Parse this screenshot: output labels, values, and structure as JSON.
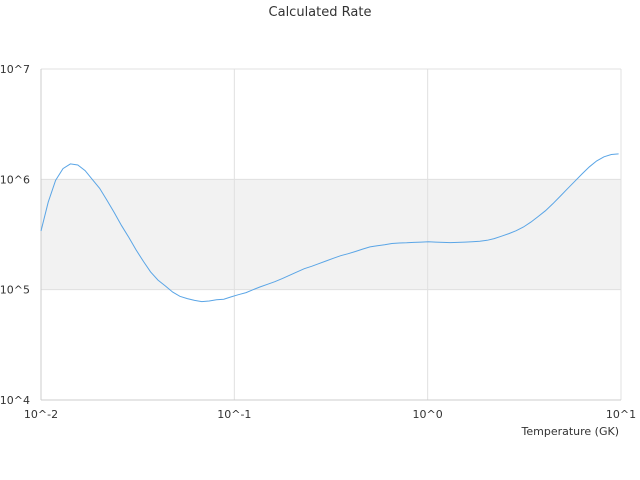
{
  "chart_data": {
    "type": "line",
    "title": "Calculated Rate",
    "xlabel": "Temperature (GK)",
    "ylabel": "",
    "x_scale": "log",
    "y_scale": "log",
    "xlim": [
      0.01,
      10
    ],
    "ylim": [
      10000,
      10000000
    ],
    "x_ticks": [
      {
        "value": 0.01,
        "label": "10^-2"
      },
      {
        "value": 0.1,
        "label": "10^-1"
      },
      {
        "value": 1,
        "label": "10^0"
      },
      {
        "value": 10,
        "label": "10^1"
      }
    ],
    "y_ticks": [
      {
        "value": 10000,
        "label": "10^4"
      },
      {
        "value": 100000,
        "label": "10^5"
      },
      {
        "value": 1000000,
        "label": "10^6"
      },
      {
        "value": 10000000,
        "label": "10^7"
      }
    ],
    "band": {
      "from": 100000,
      "to": 1000000,
      "color": "#f2f2f2"
    },
    "grid": true,
    "legend": "none",
    "colors": {
      "line": "#5aa5e6",
      "grid": "#e0e0e0",
      "axis": "#cccccc",
      "band": "#f2f2f2"
    },
    "series": [
      {
        "x": [
          0.01,
          0.0109,
          0.0119,
          0.013,
          0.0142,
          0.0155,
          0.0169,
          0.0184,
          0.0201,
          0.0219,
          0.0239,
          0.0261,
          0.0284,
          0.031,
          0.0339,
          0.0369,
          0.0403,
          0.044,
          0.048,
          0.0523,
          0.0571,
          0.0623,
          0.0679,
          0.0741,
          0.0809,
          0.0882,
          0.0962,
          0.105,
          0.115,
          0.125,
          0.136,
          0.149,
          0.162,
          0.177,
          0.193,
          0.211,
          0.23,
          0.251,
          0.273,
          0.298,
          0.326,
          0.355,
          0.388,
          0.423,
          0.461,
          0.503,
          0.549,
          0.599,
          0.653,
          0.713,
          0.778,
          0.848,
          0.925,
          1.01,
          1.1,
          1.2,
          1.31,
          1.43,
          1.56,
          1.7,
          1.86,
          2.03,
          2.21,
          2.41,
          2.63,
          2.87,
          3.13,
          3.42,
          3.73,
          4.07,
          4.44,
          4.84,
          5.28,
          5.77,
          6.29,
          6.86,
          7.49,
          8.17,
          8.91,
          9.72
        ],
        "y": [
          340000,
          620000,
          980000,
          1250000,
          1380000,
          1350000,
          1200000,
          1000000,
          830000,
          650000,
          500000,
          380000,
          300000,
          230000,
          180000,
          145000,
          122000,
          108000,
          95000,
          87000,
          83000,
          80000,
          78000,
          79000,
          81000,
          82000,
          86000,
          90000,
          94000,
          100000,
          106000,
          112000,
          118000,
          126000,
          135000,
          145000,
          155000,
          163000,
          172000,
          182000,
          193000,
          203000,
          212000,
          222000,
          233000,
          244000,
          250000,
          255000,
          262000,
          265000,
          266000,
          268000,
          270000,
          272000,
          270000,
          268000,
          267000,
          268000,
          270000,
          272000,
          275000,
          280000,
          290000,
          305000,
          322000,
          342000,
          370000,
          410000,
          460000,
          520000,
          600000,
          700000,
          820000,
          960000,
          1120000,
          1300000,
          1470000,
          1600000,
          1680000,
          1700000
        ]
      }
    ]
  }
}
